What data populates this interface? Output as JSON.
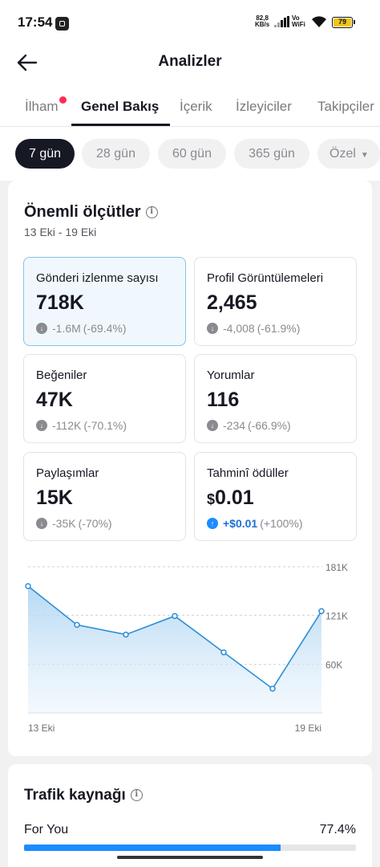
{
  "status": {
    "time": "17:54",
    "speed_value": "82,8",
    "speed_unit": "KB/s",
    "vo": "Vo",
    "wifi_label": "WiFi",
    "battery": "79"
  },
  "header": {
    "title": "Analizler"
  },
  "tabs": [
    {
      "label": "İlham",
      "has_dot": true
    },
    {
      "label": "Genel Bakış",
      "active": true
    },
    {
      "label": "İçerik"
    },
    {
      "label": "İzleyiciler"
    },
    {
      "label": "Takipçiler"
    }
  ],
  "filters": [
    {
      "label": "7 gün",
      "active": true
    },
    {
      "label": "28 gün"
    },
    {
      "label": "60 gün"
    },
    {
      "label": "365 gün"
    },
    {
      "label": "Özel"
    }
  ],
  "key_metrics": {
    "title": "Önemli ölçütler",
    "date_range": "13 Eki - 19 Eki",
    "items": [
      {
        "label": "Gönderi izlenme sayısı",
        "value": "718K",
        "delta": "-1.6M",
        "delta_pct": "(-69.4%)",
        "direction": "down"
      },
      {
        "label": "Profil Görüntülemeleri",
        "value": "2,465",
        "delta": "-4,008",
        "delta_pct": "(-61.9%)",
        "direction": "down"
      },
      {
        "label": "Beğeniler",
        "value": "47K",
        "delta": "-112K",
        "delta_pct": "(-70.1%)",
        "direction": "down"
      },
      {
        "label": "Yorumlar",
        "value": "116",
        "delta": "-234",
        "delta_pct": "(-66.9%)",
        "direction": "down"
      },
      {
        "label": "Paylaşımlar",
        "value": "15K",
        "delta": "-35K",
        "delta_pct": "(-70%)",
        "direction": "down"
      },
      {
        "label": "Tahminî ödüller",
        "currency": "$",
        "value": "0.01",
        "delta": "+$0.01",
        "delta_pct": "(+100%)",
        "direction": "up"
      }
    ]
  },
  "chart_data": {
    "type": "area",
    "series": [
      {
        "values": [
          157,
          109,
          97,
          120,
          75,
          30,
          126
        ]
      }
    ],
    "x_tick_labels": [
      "13 Eki",
      "19 Eki"
    ],
    "y_ticks": [
      {
        "value": 181,
        "label": "181K"
      },
      {
        "value": 121,
        "label": "121K"
      },
      {
        "value": 60,
        "label": "60K"
      }
    ],
    "ylim": [
      0,
      181
    ],
    "grid": true,
    "color": "#2d8fd5"
  },
  "traffic": {
    "title": "Trafik kaynağı",
    "sources": [
      {
        "label": "For You",
        "value": "77.4%",
        "fraction": 0.774
      }
    ],
    "color": "#1a8cff"
  }
}
